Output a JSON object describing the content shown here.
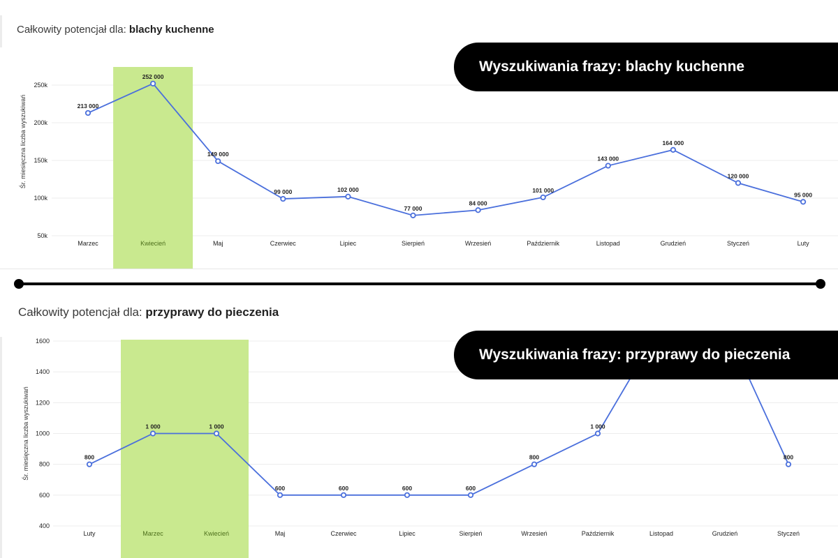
{
  "top_panel": {
    "title_prefix": "Całkowity potencjał dla: ",
    "title_bold": "blachy kuchenne",
    "banner": "Wyszukiwania frazy: blachy kuchenne"
  },
  "bottom_panel": {
    "title_prefix": "Całkowity potencjał dla: ",
    "title_bold": "przyprawy do pieczenia",
    "banner": "Wyszukiwania frazy: przyprawy do pieczenia"
  },
  "colors": {
    "line": "#4a6fdc",
    "highlight": "#c9e98f",
    "highlight_label": "#4d6f1c",
    "grid": "#ececec",
    "text": "#222222"
  },
  "chart_data": [
    {
      "type": "line",
      "title": "",
      "xlabel": "",
      "ylabel": "Śr. miesięczna liczba wyszukiwań",
      "ylim": [
        50000,
        300000
      ],
      "yticks": [
        50000,
        100000,
        150000,
        200000,
        250000
      ],
      "ytick_labels": [
        "50k",
        "100k",
        "150k",
        "200k",
        "250k"
      ],
      "categories": [
        "Marzec",
        "Kwiecień",
        "Maj",
        "Czerwiec",
        "Lipiec",
        "Sierpień",
        "Wrzesień",
        "Październik",
        "Listopad",
        "Grudzień",
        "Styczeń",
        "Luty"
      ],
      "values": [
        213000,
        252000,
        149000,
        99000,
        102000,
        77000,
        84000,
        101000,
        143000,
        164000,
        120000,
        95000
      ],
      "value_labels": [
        "213 000",
        "252 000",
        "149 000",
        "99 000",
        "102 000",
        "77 000",
        "84 000",
        "101 000",
        "143 000",
        "164 000",
        "120 000",
        "95 000"
      ],
      "highlighted_categories": [
        "Kwiecień"
      ],
      "grid": true
    },
    {
      "type": "line",
      "title": "",
      "xlabel": "",
      "ylabel": "Śr. miesięczna liczba wyszukiwań",
      "ylim": [
        400,
        1600
      ],
      "yticks": [
        400,
        600,
        800,
        1000,
        1200,
        1400,
        1600
      ],
      "ytick_labels": [
        "400",
        "600",
        "800",
        "1000",
        "1200",
        "1400",
        "1600"
      ],
      "categories": [
        "Luty",
        "Marzec",
        "Kwiecień",
        "Maj",
        "Czerwiec",
        "Lipiec",
        "Sierpień",
        "Wrzesień",
        "Październik",
        "Listopad",
        "Grudzień",
        "Styczeń"
      ],
      "values": [
        800,
        1000,
        1000,
        600,
        600,
        600,
        600,
        800,
        1000,
        1700,
        1700,
        800
      ],
      "value_labels": [
        "800",
        "1 000",
        "1 000",
        "600",
        "600",
        "600",
        "600",
        "800",
        "1 000",
        "",
        "",
        "800"
      ],
      "highlighted_categories": [
        "Marzec",
        "Kwiecień"
      ],
      "grid": true
    }
  ]
}
